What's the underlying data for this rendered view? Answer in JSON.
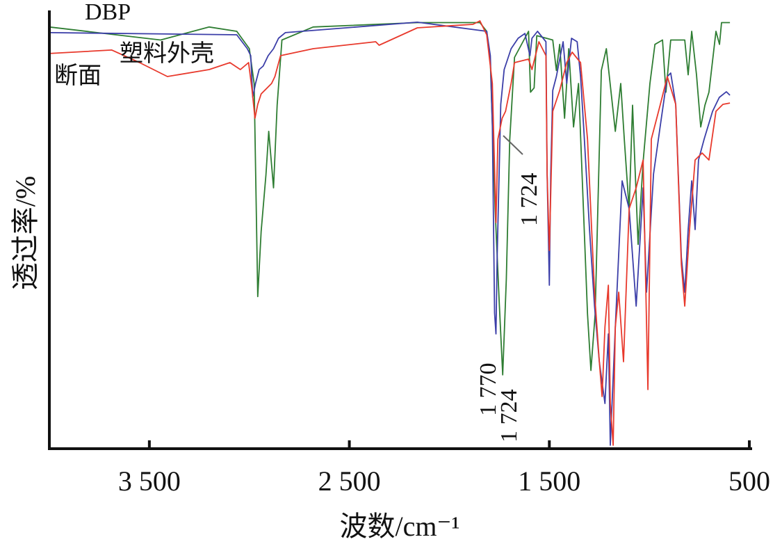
{
  "chart_data": {
    "type": "line",
    "title": "",
    "xlabel": "波数/cm⁻¹",
    "ylabel": "透过率/%",
    "xlim": [
      4000,
      500
    ],
    "ylim": [
      0,
      100
    ],
    "x_reversed": true,
    "grid": false,
    "xticks": [
      3500,
      2500,
      1500,
      500
    ],
    "xtick_labels": [
      "3 500",
      "2 500",
      "1 500",
      "500"
    ],
    "series": [
      {
        "name": "DBP",
        "color": "#2e7d32",
        "points": [
          [
            4000,
            97
          ],
          [
            3444,
            94
          ],
          [
            3201,
            97
          ],
          [
            3063,
            96
          ],
          [
            3000,
            92
          ],
          [
            2976,
            84
          ],
          [
            2958,
            35
          ],
          [
            2941,
            50
          ],
          [
            2917,
            63
          ],
          [
            2903,
            73
          ],
          [
            2879,
            60
          ],
          [
            2861,
            79
          ],
          [
            2837,
            94
          ],
          [
            2681,
            97
          ],
          [
            2160,
            98
          ],
          [
            1847,
            98
          ],
          [
            1813,
            96
          ],
          [
            1795,
            89
          ],
          [
            1771,
            55
          ],
          [
            1750,
            33
          ],
          [
            1733,
            17
          ],
          [
            1715,
            39
          ],
          [
            1698,
            71
          ],
          [
            1674,
            90
          ],
          [
            1604,
            96
          ],
          [
            1594,
            82
          ],
          [
            1576,
            83
          ],
          [
            1563,
            95
          ],
          [
            1483,
            94
          ],
          [
            1465,
            87
          ],
          [
            1448,
            93
          ],
          [
            1424,
            76
          ],
          [
            1403,
            92
          ],
          [
            1379,
            74
          ],
          [
            1354,
            84
          ],
          [
            1309,
            31
          ],
          [
            1292,
            18
          ],
          [
            1271,
            31
          ],
          [
            1240,
            87
          ],
          [
            1215,
            92
          ],
          [
            1170,
            73
          ],
          [
            1143,
            84
          ],
          [
            1125,
            71
          ],
          [
            1101,
            55
          ],
          [
            1084,
            79
          ],
          [
            1056,
            47
          ],
          [
            1031,
            66
          ],
          [
            997,
            84
          ],
          [
            972,
            93
          ],
          [
            934,
            94
          ],
          [
            917,
            82
          ],
          [
            893,
            94
          ],
          [
            823,
            94
          ],
          [
            806,
            86
          ],
          [
            788,
            96
          ],
          [
            764,
            86
          ],
          [
            743,
            74
          ],
          [
            722,
            79
          ],
          [
            702,
            82
          ],
          [
            667,
            96
          ],
          [
            649,
            93
          ],
          [
            639,
            98
          ],
          [
            597,
            98
          ]
        ]
      },
      {
        "name": "塑料外壳",
        "color": "#3b3ea8",
        "points": [
          [
            4000,
            95.7
          ],
          [
            3063,
            95.2
          ],
          [
            3010,
            92
          ],
          [
            2993,
            90.4
          ],
          [
            2983,
            80.8
          ],
          [
            2969,
            84
          ],
          [
            2951,
            87.2
          ],
          [
            2931,
            88
          ],
          [
            2906,
            90.4
          ],
          [
            2879,
            92
          ],
          [
            2854,
            94.4
          ],
          [
            2820,
            95.7
          ],
          [
            2160,
            98.1
          ],
          [
            1813,
            96
          ],
          [
            1795,
            90.4
          ],
          [
            1785,
            74.4
          ],
          [
            1774,
            31.2
          ],
          [
            1767,
            26.4
          ],
          [
            1761,
            44
          ],
          [
            1743,
            79.2
          ],
          [
            1726,
            87.2
          ],
          [
            1691,
            92
          ],
          [
            1656,
            94.4
          ],
          [
            1622,
            95.5
          ],
          [
            1597,
            90.4
          ],
          [
            1587,
            94.4
          ],
          [
            1559,
            96
          ],
          [
            1517,
            93.6
          ],
          [
            1511,
            63.2
          ],
          [
            1500,
            37.6
          ],
          [
            1493,
            63.2
          ],
          [
            1483,
            82.4
          ],
          [
            1465,
            85.6
          ],
          [
            1431,
            93.6
          ],
          [
            1413,
            84
          ],
          [
            1389,
            94.4
          ],
          [
            1361,
            93.6
          ],
          [
            1344,
            85.6
          ],
          [
            1327,
            72.8
          ],
          [
            1299,
            50.4
          ],
          [
            1274,
            32.8
          ],
          [
            1250,
            20
          ],
          [
            1222,
            10.4
          ],
          [
            1205,
            26.4
          ],
          [
            1195,
            0.8
          ],
          [
            1170,
            28
          ],
          [
            1136,
            61.6
          ],
          [
            1101,
            55.2
          ],
          [
            1066,
            32.8
          ],
          [
            1031,
            60
          ],
          [
            1014,
            36
          ],
          [
            979,
            63.2
          ],
          [
            945,
            74.4
          ],
          [
            910,
            85.6
          ],
          [
            893,
            86.4
          ],
          [
            868,
            79.2
          ],
          [
            840,
            44
          ],
          [
            823,
            36
          ],
          [
            806,
            50.4
          ],
          [
            788,
            61.6
          ],
          [
            771,
            50.4
          ],
          [
            754,
            66.4
          ],
          [
            726,
            71.2
          ],
          [
            684,
            77.6
          ],
          [
            650,
            80.8
          ],
          [
            615,
            82.1
          ],
          [
            597,
            81.3
          ]
        ]
      },
      {
        "name": "断面",
        "color": "#e8392c",
        "points": [
          [
            4000,
            90.9
          ],
          [
            3688,
            91.7
          ],
          [
            3549,
            88.8
          ],
          [
            3410,
            85.6
          ],
          [
            3201,
            87.2
          ],
          [
            3097,
            88.8
          ],
          [
            3045,
            87.2
          ],
          [
            3004,
            88.8
          ],
          [
            2986,
            82.4
          ],
          [
            2972,
            76
          ],
          [
            2958,
            79.2
          ],
          [
            2941,
            81.6
          ],
          [
            2889,
            84
          ],
          [
            2872,
            85.6
          ],
          [
            2844,
            90.4
          ],
          [
            2681,
            92
          ],
          [
            2368,
            93.6
          ],
          [
            2351,
            92.8
          ],
          [
            2160,
            96.8
          ],
          [
            1882,
            97.6
          ],
          [
            1847,
            98.4
          ],
          [
            1813,
            95.2
          ],
          [
            1785,
            84
          ],
          [
            1767,
            52
          ],
          [
            1757,
            71.2
          ],
          [
            1736,
            76
          ],
          [
            1719,
            77.6
          ],
          [
            1691,
            84
          ],
          [
            1674,
            88.8
          ],
          [
            1604,
            89.6
          ],
          [
            1587,
            87.2
          ],
          [
            1552,
            93.6
          ],
          [
            1517,
            90.4
          ],
          [
            1511,
            63.2
          ],
          [
            1500,
            45.6
          ],
          [
            1483,
            77.6
          ],
          [
            1448,
            82.4
          ],
          [
            1413,
            88.8
          ],
          [
            1386,
            91.2
          ],
          [
            1344,
            88.8
          ],
          [
            1309,
            71.2
          ],
          [
            1274,
            36
          ],
          [
            1250,
            20
          ],
          [
            1236,
            12
          ],
          [
            1222,
            28
          ],
          [
            1205,
            37.6
          ],
          [
            1195,
            10.4
          ],
          [
            1181,
            0.8
          ],
          [
            1170,
            28
          ],
          [
            1153,
            36
          ],
          [
            1129,
            20
          ],
          [
            1101,
            55.2
          ],
          [
            1066,
            60
          ],
          [
            1031,
            66.4
          ],
          [
            1007,
            13.6
          ],
          [
            990,
            71.2
          ],
          [
            945,
            79.2
          ],
          [
            910,
            85.6
          ],
          [
            868,
            79.2
          ],
          [
            840,
            42.4
          ],
          [
            823,
            32.8
          ],
          [
            799,
            50.4
          ],
          [
            771,
            66.4
          ],
          [
            736,
            68
          ],
          [
            702,
            66.4
          ],
          [
            667,
            77.6
          ],
          [
            632,
            79.2
          ],
          [
            597,
            79.5
          ]
        ]
      }
    ],
    "annotations": [
      {
        "text": "1 770",
        "x": 1770,
        "y": 26
      },
      {
        "text": "1 724",
        "x": 1724,
        "y": 17
      },
      {
        "text": "1 724",
        "x": 1724,
        "y": 75
      }
    ]
  }
}
